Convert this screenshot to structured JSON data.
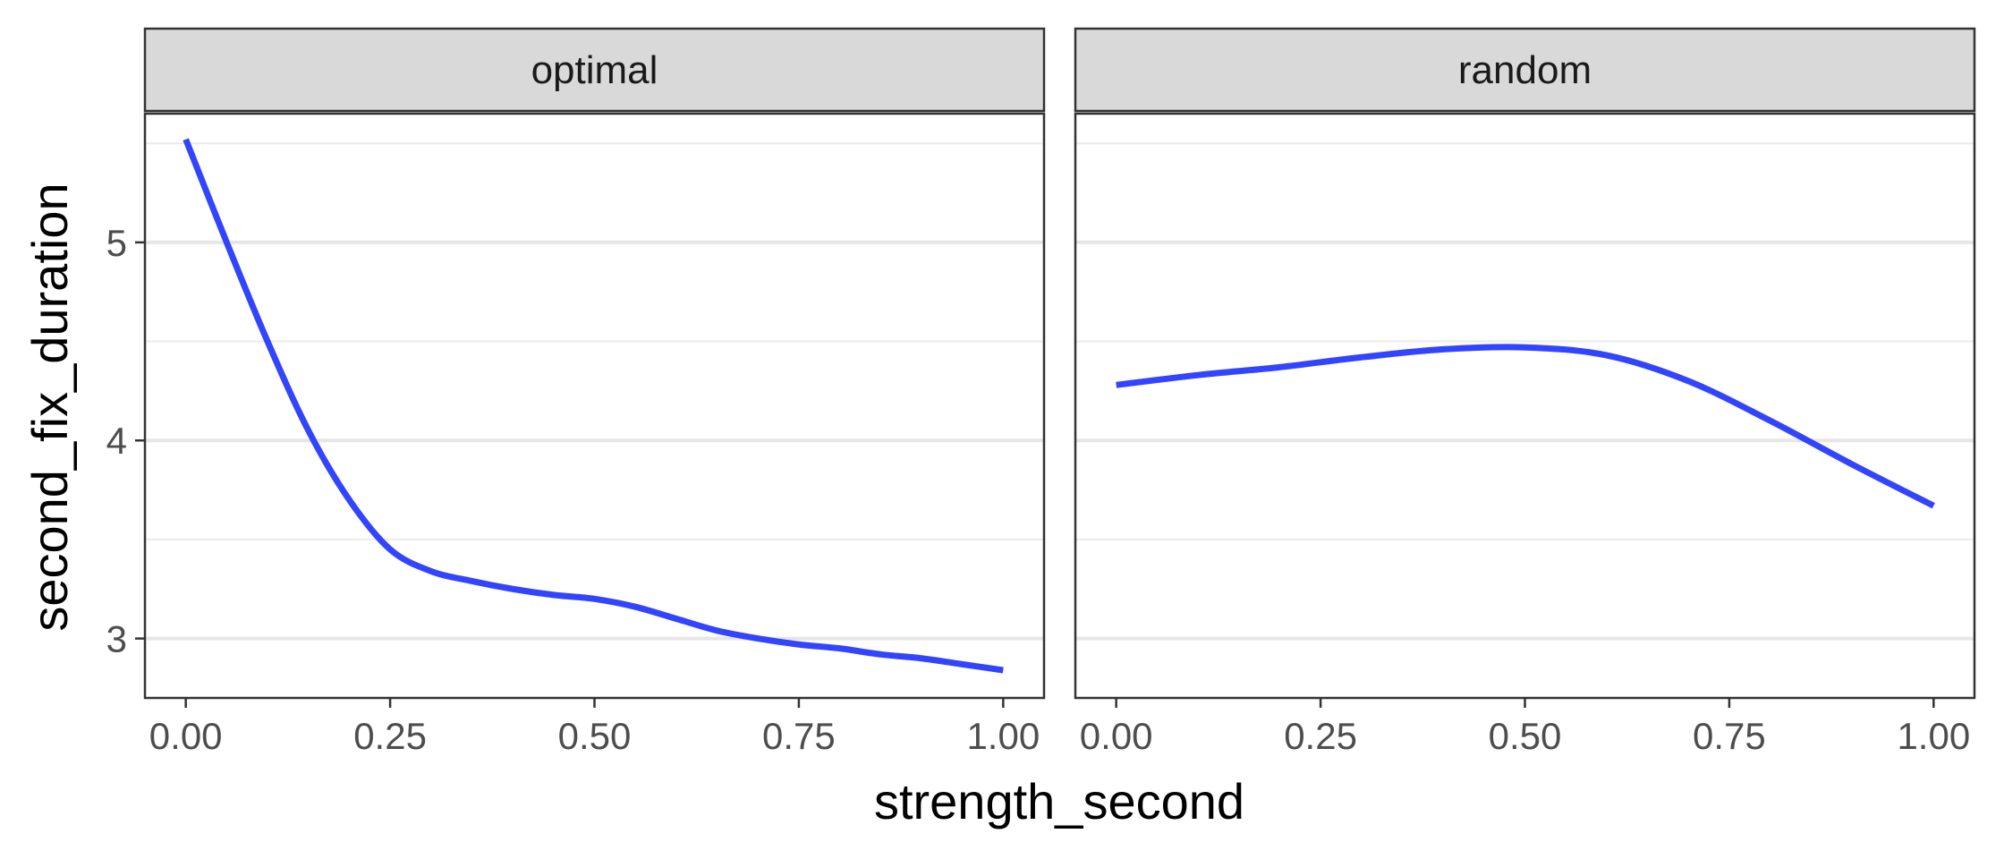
{
  "chart_data": {
    "type": "line",
    "xlabel": "strength_second",
    "ylabel": "second_fix_duration",
    "xlim": [
      -0.05,
      1.05
    ],
    "ylim": [
      2.7,
      5.65
    ],
    "x_ticks": [
      "0.00",
      "0.25",
      "0.50",
      "0.75",
      "1.00"
    ],
    "y_ticks": [
      "3",
      "4",
      "5"
    ],
    "grid": true,
    "line_color": "#3344ff",
    "panels": [
      {
        "label": "optimal",
        "x": [
          0.0,
          0.05,
          0.1,
          0.15,
          0.2,
          0.25,
          0.3,
          0.35,
          0.4,
          0.45,
          0.5,
          0.55,
          0.6,
          0.65,
          0.7,
          0.75,
          0.8,
          0.85,
          0.9,
          0.95,
          1.0
        ],
        "y": [
          5.52,
          5.0,
          4.5,
          4.05,
          3.7,
          3.45,
          3.34,
          3.29,
          3.25,
          3.22,
          3.2,
          3.16,
          3.1,
          3.04,
          3.0,
          2.97,
          2.95,
          2.92,
          2.9,
          2.87,
          2.84
        ]
      },
      {
        "label": "random",
        "x": [
          0.0,
          0.1,
          0.2,
          0.3,
          0.4,
          0.5,
          0.6,
          0.7,
          0.8,
          0.9,
          1.0
        ],
        "y": [
          4.28,
          4.33,
          4.37,
          4.42,
          4.46,
          4.47,
          4.43,
          4.3,
          4.1,
          3.88,
          3.67
        ]
      }
    ]
  }
}
